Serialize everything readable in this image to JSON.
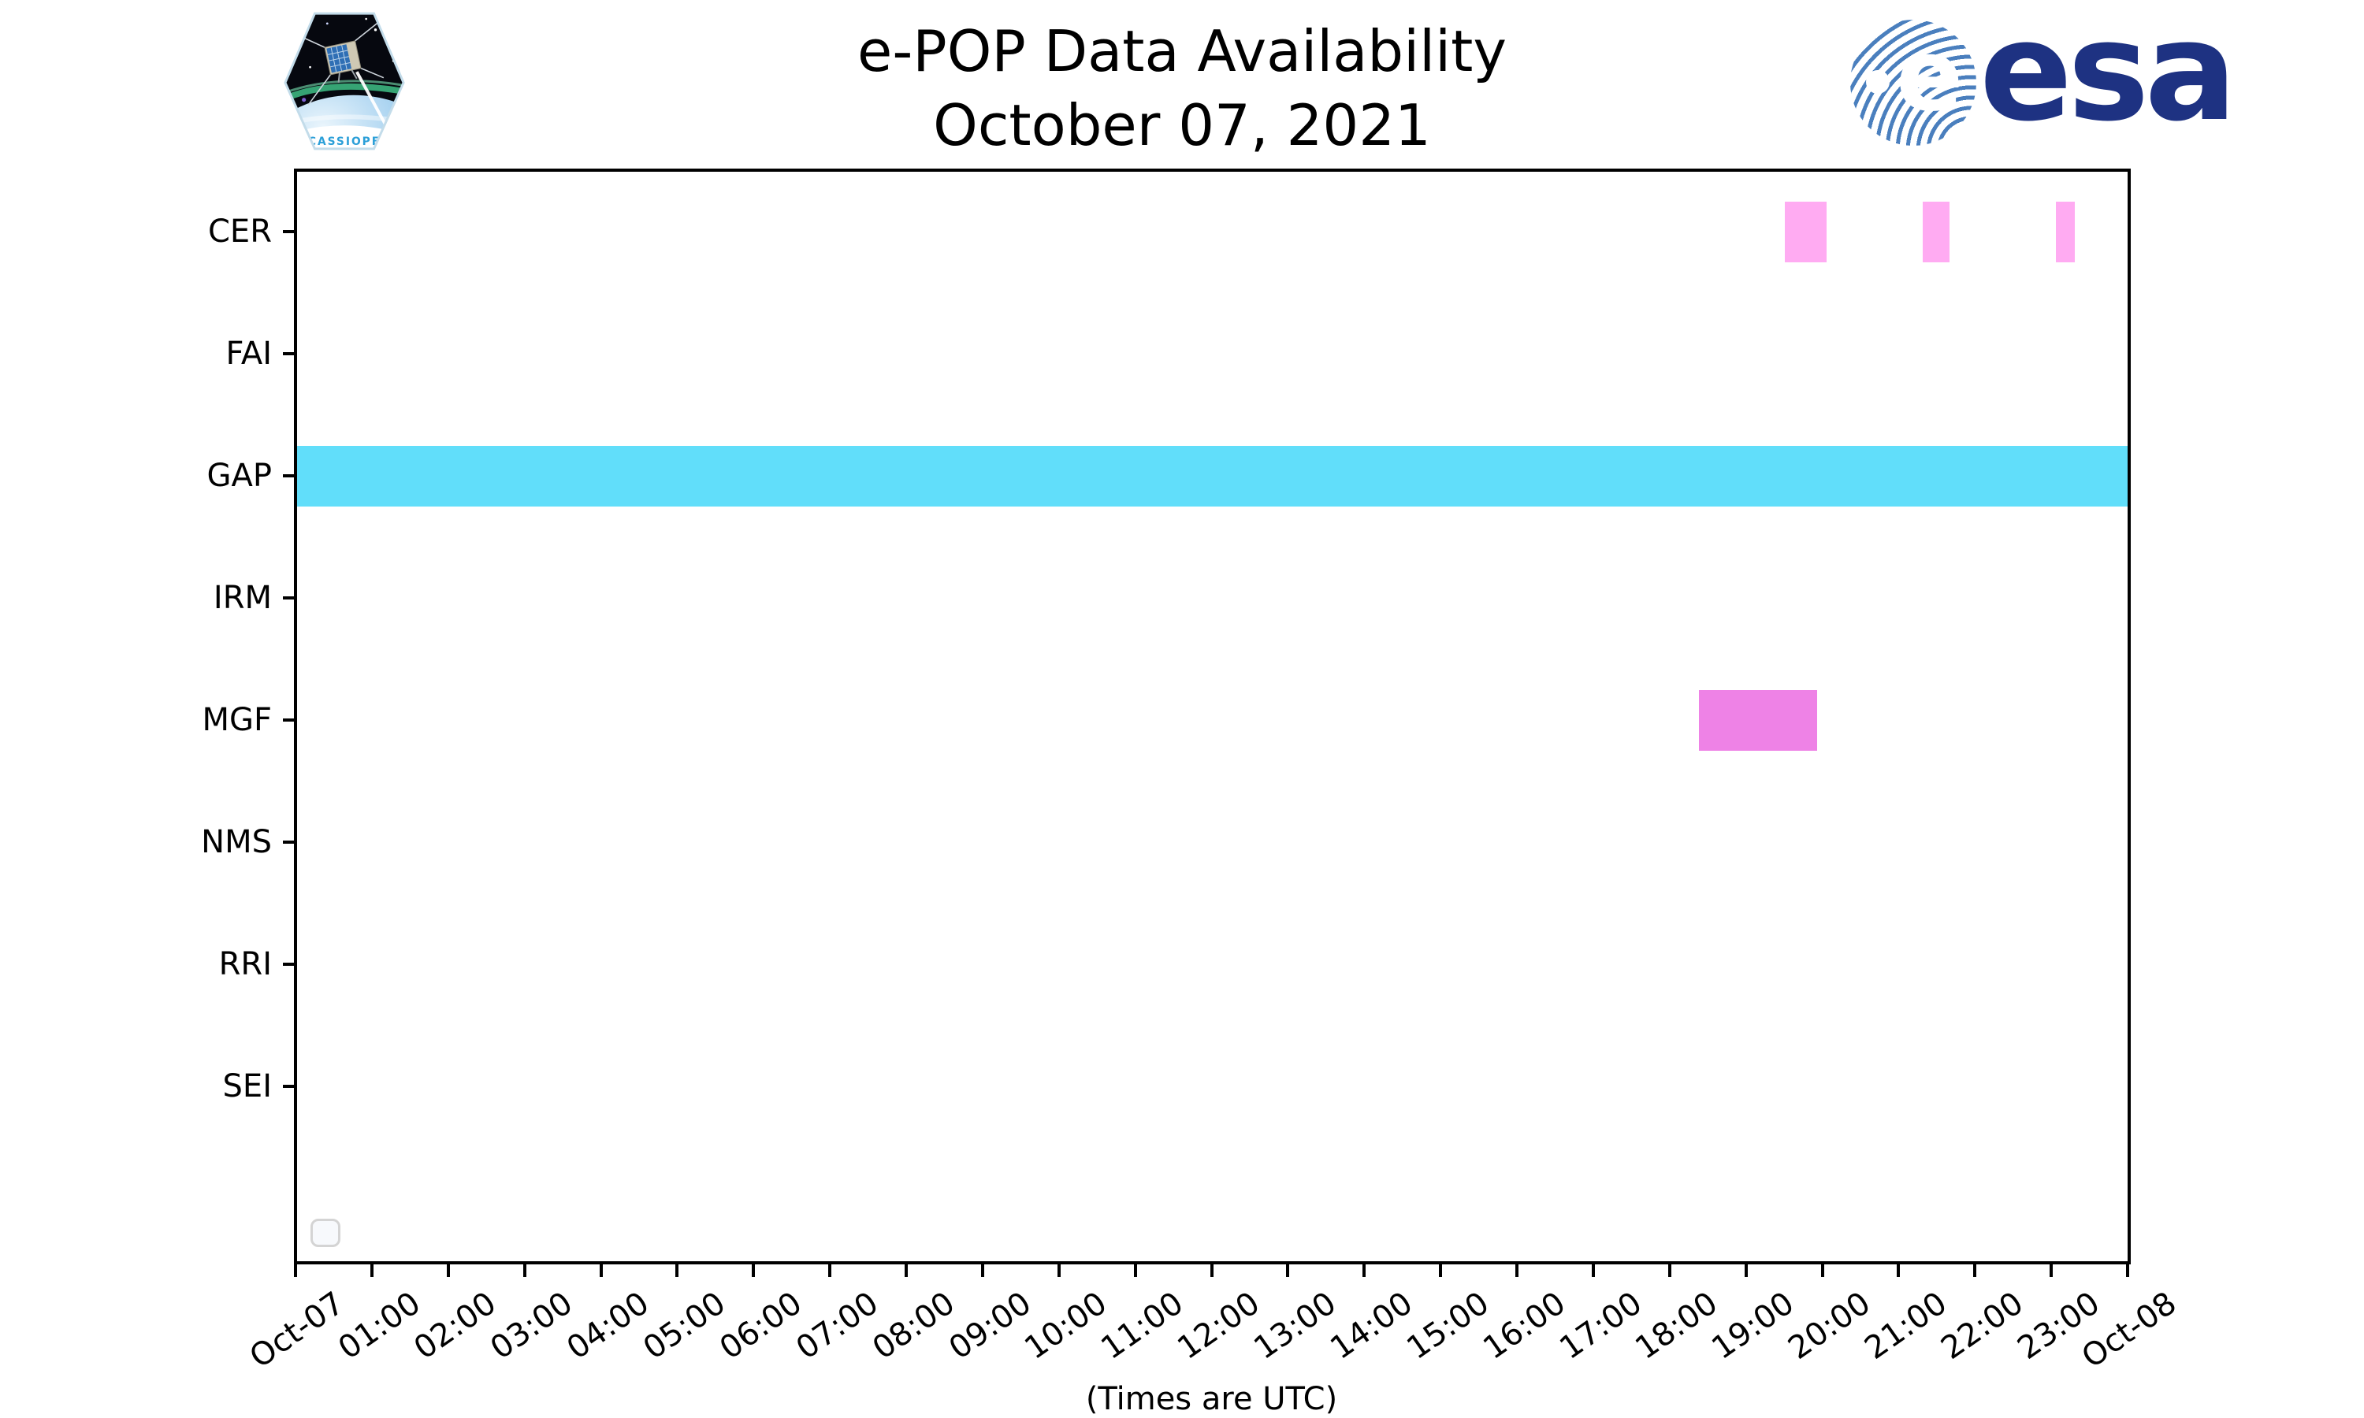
{
  "header": {
    "title": "e-POP Data Availability",
    "subtitle": "October 07, 2021",
    "cassiope_patch_label": "CASSIOPE",
    "esa_ball_letter": "e",
    "esa_logo_label": "esa"
  },
  "footer_note": "(Times are UTC)",
  "colors": {
    "esa_navy": "#1e3282",
    "esa_stripe_blue": "#4a7fbe",
    "cassiope_text_blue": "#2b9fd8",
    "cer_bar": "#ffabf2",
    "gap_bar": "#61defa",
    "mgf_bar": "#ee82e6",
    "axis": "#000000"
  },
  "chart_data": {
    "type": "bar",
    "subtype": "gantt-timeline",
    "title": "e-POP Data Availability",
    "subtitle": "October 07, 2021",
    "xlabel": "(Times are UTC)",
    "x_range_hours": [
      0,
      24
    ],
    "x_tick_labels": [
      "Oct-07",
      "01:00",
      "02:00",
      "03:00",
      "04:00",
      "05:00",
      "06:00",
      "07:00",
      "08:00",
      "09:00",
      "10:00",
      "11:00",
      "12:00",
      "13:00",
      "14:00",
      "15:00",
      "16:00",
      "17:00",
      "18:00",
      "19:00",
      "20:00",
      "21:00",
      "22:00",
      "23:00",
      "Oct-08"
    ],
    "rows": [
      {
        "label": "CER",
        "color": "#ffabf2",
        "intervals": [
          [
            19.51,
            20.06
          ],
          [
            21.32,
            21.67
          ],
          [
            23.06,
            23.31
          ]
        ]
      },
      {
        "label": "FAI",
        "color": null,
        "intervals": []
      },
      {
        "label": "GAP",
        "color": "#61defa",
        "intervals": [
          [
            0,
            24
          ]
        ]
      },
      {
        "label": "IRM",
        "color": null,
        "intervals": []
      },
      {
        "label": "MGF",
        "color": "#ee82e6",
        "intervals": [
          [
            18.38,
            19.93
          ]
        ]
      },
      {
        "label": "NMS",
        "color": null,
        "intervals": []
      },
      {
        "label": "RRI",
        "color": null,
        "intervals": []
      },
      {
        "label": "SEI",
        "color": null,
        "intervals": []
      }
    ],
    "legend": {
      "visible": true,
      "items": []
    },
    "grid": false
  }
}
